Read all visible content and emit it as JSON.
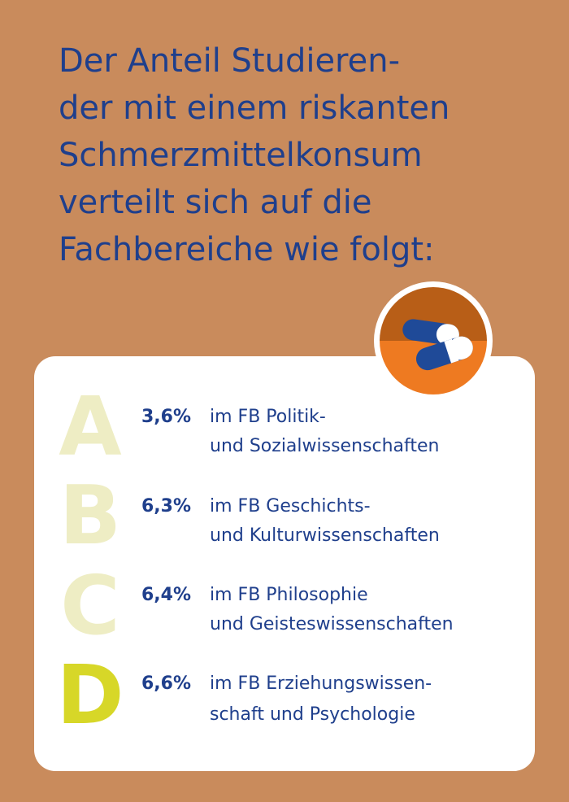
{
  "headline": {
    "lines": [
      "Der Anteil Studieren-",
      "der mit einem riskanten",
      "Schmerzmittelkonsum",
      "verteilt sich auf die",
      "Fachbereiche wie folgt:"
    ]
  },
  "colors": {
    "background": "#C98B5C",
    "headline": "#1F3F8C",
    "letter_pale": "#EEEDC4",
    "letter_bright": "#D7D728",
    "badge_top": "#B85E17",
    "badge_bottom": "#EE7A21",
    "pill": "#1F4A98"
  },
  "icon": "pill-capsule-icon",
  "rows": [
    {
      "letter": "A",
      "percent": "3,6%",
      "line1": "im FB Politik-",
      "line2": "und Sozialwissenschaften"
    },
    {
      "letter": "B",
      "percent": "6,3%",
      "line1": "im FB Geschichts-",
      "line2": "und Kulturwissenschaften"
    },
    {
      "letter": "C",
      "percent": "6,4%",
      "line1": "im FB Philosophie",
      "line2": "und Geisteswissenschaften"
    },
    {
      "letter": "D",
      "percent": "6,6%",
      "line1": "im FB Erziehungswissen-",
      "line2": "schaft und Psychologie"
    }
  ]
}
